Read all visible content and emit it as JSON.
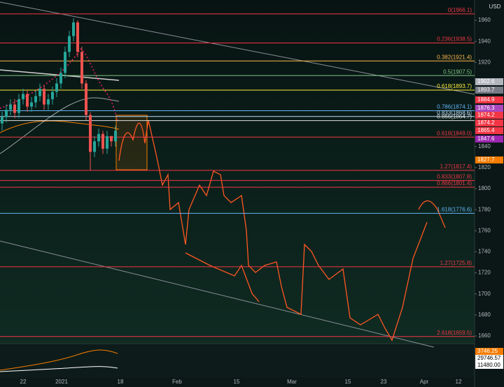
{
  "chart_data": {
    "type": "candlestick",
    "currency": "USD",
    "ylim": [
      1652.7,
      1979.3
    ],
    "yticks": [
      1960,
      1940,
      1920,
      1840,
      1820,
      1800,
      1780,
      1760,
      1740,
      1720,
      1700,
      1680,
      1660
    ],
    "x_labels": [
      "22",
      "2021",
      "18",
      "Feb",
      "15",
      "Mar",
      "15",
      "23",
      "Apr",
      "12"
    ],
    "open": [
      1862,
      1868,
      1875,
      1880,
      1872,
      1885,
      1890,
      1878,
      1882,
      1888,
      1895,
      1880,
      1885,
      1892,
      1900,
      1910,
      1930,
      1945,
      1958,
      1930,
      1900,
      1870,
      1835,
      1845,
      1852,
      1838,
      1850,
      1845
    ],
    "high": [
      1873,
      1880,
      1885,
      1885,
      1890,
      1895,
      1893,
      1887,
      1893,
      1900,
      1898,
      1890,
      1897,
      1905,
      1915,
      1935,
      1950,
      1962,
      1960,
      1935,
      1903,
      1873,
      1850,
      1857,
      1855,
      1855,
      1850,
      1860
    ],
    "low": [
      1855,
      1863,
      1870,
      1867,
      1867,
      1880,
      1873,
      1873,
      1877,
      1883,
      1875,
      1875,
      1880,
      1887,
      1895,
      1905,
      1925,
      1940,
      1925,
      1895,
      1865,
      1817,
      1830,
      1840,
      1833,
      1833,
      1840,
      1840
    ],
    "close": [
      1868,
      1875,
      1880,
      1872,
      1885,
      1890,
      1878,
      1882,
      1888,
      1895,
      1880,
      1885,
      1892,
      1900,
      1910,
      1930,
      1945,
      1958,
      1930,
      1900,
      1870,
      1835,
      1845,
      1852,
      1838,
      1850,
      1845,
      1855
    ],
    "up_color": "#26a69a",
    "down_color": "#ef5350",
    "fib_levels": [
      {
        "label": "0(1966.1)",
        "value": 1966.1,
        "color": "#f23645"
      },
      {
        "label": "0.236(1938.5)",
        "value": 1938.5,
        "color": "#f23645"
      },
      {
        "label": "0.382(1921.4)",
        "value": 1921.4,
        "color": "#ffb74d"
      },
      {
        "label": "0.5(1907.5)",
        "value": 1907.5,
        "color": "#81c784"
      },
      {
        "label": "0.618(1893.7)",
        "value": 1893.7,
        "color": "#ffeb3b"
      },
      {
        "label": "0.786(1874.1)",
        "value": 1874.1,
        "color": "#64b5f6"
      },
      {
        "label": "0.833(1868.6)",
        "value": 1868.6,
        "color": "#bbdefb"
      },
      {
        "label": "0.866(1864.7)",
        "value": 1864.7,
        "color": "#e0e0e0"
      },
      {
        "label": "0.618(1849.0)",
        "value": 1849.0,
        "color": "#f23645"
      },
      {
        "label": "1.27(1817.4)",
        "value": 1817.4,
        "color": "#f23645"
      },
      {
        "label": "0.833(1807.8)",
        "value": 1807.8,
        "color": "#f23645"
      },
      {
        "label": "0.866(1801.4)",
        "value": 1801.4,
        "color": "#f23645"
      },
      {
        "label": "1.618(1776.6)",
        "value": 1776.6,
        "color": "#64b5f6"
      },
      {
        "label": "1.27(1725.8)",
        "value": 1725.8,
        "color": "#f23645"
      },
      {
        "label": "2.618(1659.5)",
        "value": 1659.5,
        "color": "#f23645"
      }
    ],
    "price_tags": [
      {
        "label": "1902.6",
        "color": "#b2b5be"
      },
      {
        "label": "1893.7",
        "color": "#787b86"
      },
      {
        "label": "1884.9",
        "color": "#f23645"
      },
      {
        "label": "1876.3",
        "color": "#ab47bc"
      },
      {
        "label": "1874.2",
        "color": "#f23645"
      },
      {
        "label": "1874.2",
        "color": "#f23645"
      },
      {
        "label": "1865.4",
        "color": "#f23645"
      },
      {
        "label": "1847.6",
        "color": "#9c27b0"
      },
      {
        "label": "1827.7",
        "color": "#f57c00"
      }
    ],
    "volume_tags": [
      {
        "label": "3746.25",
        "color": "#f57c00"
      },
      {
        "label": "29746.57",
        "color": "#ffffff"
      },
      {
        "label": "11480.00",
        "color": "#ffffff"
      }
    ]
  }
}
